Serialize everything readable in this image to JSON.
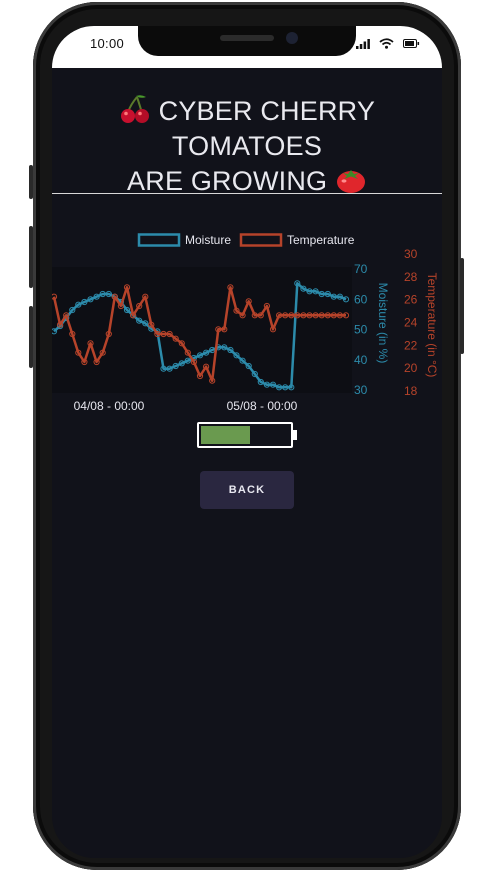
{
  "status_bar": {
    "time": "10:00"
  },
  "page": {
    "title_line1": "CYBER CHERRY TOMATOES",
    "title_line2": "ARE GROWING",
    "icons": [
      "cherries-emoji",
      "tomato-emoji"
    ]
  },
  "colors": {
    "moisture": "#2c8bab",
    "temperature": "#b6432a",
    "background": "#11121a",
    "battery_fill": "#6a9a4f"
  },
  "chart_data": {
    "type": "line",
    "x_tick_labels": [
      "04/08 - 00:00",
      "05/08 - 00:00"
    ],
    "x": [
      0,
      1,
      2,
      3,
      4,
      5,
      6,
      7,
      8,
      9,
      10,
      11,
      12,
      13,
      14,
      15,
      16,
      17,
      18,
      19,
      20,
      21,
      22,
      23,
      24,
      25,
      26,
      27,
      28,
      29,
      30,
      31,
      32,
      33,
      34,
      35,
      36,
      37,
      38,
      39,
      40,
      41,
      42,
      43,
      44,
      45,
      46,
      47,
      48
    ],
    "series": [
      {
        "name": "Moisture",
        "axis": "left",
        "ylabel": "Moisture (in %)",
        "ylim": [
          30,
          72
        ],
        "y_ticks": [
          30,
          40,
          50,
          60,
          70
        ],
        "values": [
          52,
          54,
          57,
          60,
          62,
          63,
          64,
          65,
          66,
          66,
          65,
          63,
          60,
          58,
          56,
          55,
          53,
          52,
          38,
          38,
          39,
          40,
          41,
          42,
          43,
          44,
          45,
          46,
          46,
          45,
          43,
          41,
          39,
          36,
          33,
          32,
          32,
          31,
          31,
          31,
          70,
          68,
          67,
          67,
          66,
          66,
          65,
          65,
          64
        ]
      },
      {
        "name": "Temperature",
        "axis": "right",
        "ylabel": "Temperature (in °C)",
        "ylim": [
          18,
          30
        ],
        "y_ticks": [
          18,
          20,
          22,
          24,
          26,
          28,
          30
        ],
        "values": [
          28,
          25,
          26,
          24,
          22,
          21,
          23,
          21,
          22,
          24,
          28,
          27,
          29,
          26,
          27,
          28,
          25,
          24,
          24,
          24,
          23.5,
          23,
          22,
          21,
          19.5,
          20.5,
          19,
          24.5,
          24.5,
          29,
          26.5,
          26,
          27.5,
          26,
          26,
          27,
          24.5,
          26,
          26,
          26,
          26,
          26,
          26,
          26,
          26,
          26,
          26,
          26,
          26
        ]
      }
    ]
  },
  "battery": {
    "level": 0.56
  },
  "back_button": {
    "label": "BACK"
  }
}
